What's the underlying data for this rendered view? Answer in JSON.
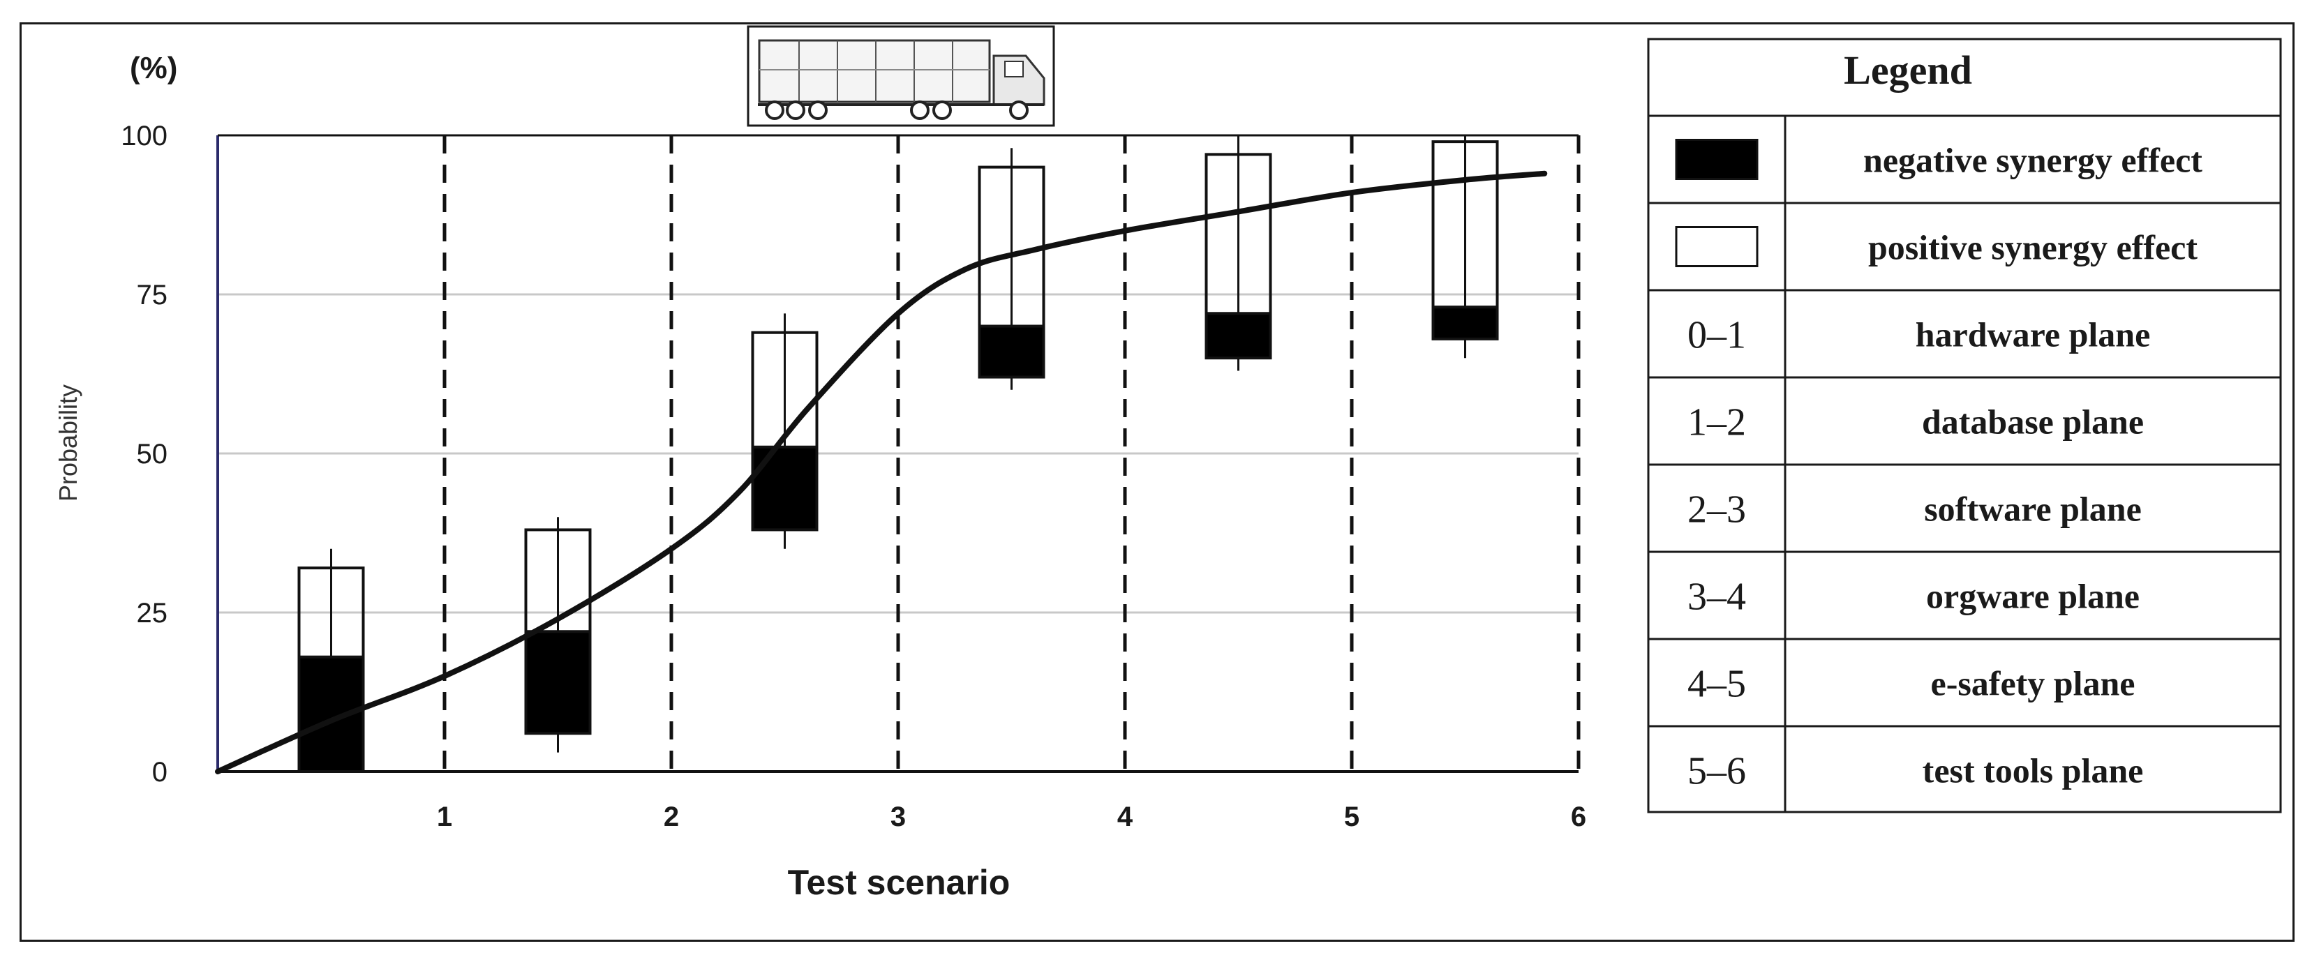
{
  "chart_data": {
    "type": "bar",
    "title": "",
    "ylabel": "Probability",
    "y_unit": "(%)",
    "xlabel": "Test scenario",
    "ylim": [
      0,
      100
    ],
    "xlim": [
      0,
      6
    ],
    "y_ticks": [
      "0",
      "25",
      "50",
      "75",
      "100"
    ],
    "x_ticks": [
      "1",
      "2",
      "3",
      "4",
      "5",
      "6"
    ],
    "grid": true,
    "colors": {
      "negative": "#000000",
      "positive": "#ffffff",
      "curve": "#111111",
      "grid": "#c8c8c8"
    },
    "boxes": [
      {
        "x": 0.5,
        "low": 0,
        "mid": 18,
        "high": 32,
        "whisker_low": 0,
        "whisker_high": 35
      },
      {
        "x": 1.5,
        "low": 6,
        "mid": 22,
        "high": 38,
        "whisker_low": 3,
        "whisker_high": 40
      },
      {
        "x": 2.5,
        "low": 38,
        "mid": 51,
        "high": 69,
        "whisker_low": 35,
        "whisker_high": 72
      },
      {
        "x": 3.5,
        "low": 62,
        "mid": 70,
        "high": 95,
        "whisker_low": 60,
        "whisker_high": 98
      },
      {
        "x": 4.5,
        "low": 65,
        "mid": 72,
        "high": 97,
        "whisker_low": 63,
        "whisker_high": 100
      },
      {
        "x": 5.5,
        "low": 68,
        "mid": 73,
        "high": 99,
        "whisker_low": 65,
        "whisker_high": 100
      }
    ],
    "curve": {
      "x": [
        0,
        0.5,
        1,
        1.5,
        2,
        2.3,
        2.6,
        3,
        3.3,
        3.6,
        4,
        4.5,
        5,
        5.5,
        5.85
      ],
      "y": [
        0,
        8,
        15,
        24,
        35,
        44,
        57,
        72,
        79,
        82,
        85,
        88,
        91,
        93,
        94
      ]
    },
    "legend": {
      "title": "Legend",
      "placement": "right",
      "items": [
        {
          "key": "negative-swatch",
          "label": "negative synergy effect"
        },
        {
          "key": "positive-swatch",
          "label": "positive synergy effect"
        },
        {
          "key": "0–1",
          "label": "hardware plane"
        },
        {
          "key": "1–2",
          "label": "database plane"
        },
        {
          "key": "2–3",
          "label": "software plane"
        },
        {
          "key": "3–4",
          "label": "orgware plane"
        },
        {
          "key": "4–5",
          "label": "e-safety plane"
        },
        {
          "key": "5–6",
          "label": "test tools plane"
        }
      ]
    }
  }
}
